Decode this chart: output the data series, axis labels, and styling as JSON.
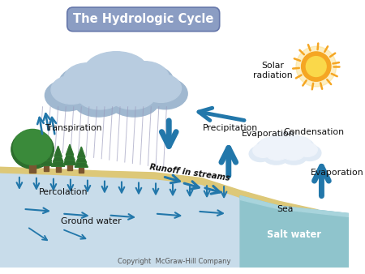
{
  "title": "The Hydrologic Cycle",
  "title_bg": "#8B9DC3",
  "title_color": "white",
  "copyright": "Copyright  McGraw-Hill Company",
  "background_color": "white",
  "labels": {
    "solar_radiation": "Solar\nradiation",
    "condensation": "Condensation",
    "precipitation": "Precipitation",
    "transpiration": "Transpiration",
    "evaporation_land": "Evaporation",
    "evaporation_sea": "Evaporation",
    "runoff": "Runoff in streams",
    "percolation": "Percolation",
    "ground_water": "Ground water",
    "sea": "Sea",
    "salt_water": "Salt water"
  },
  "colors": {
    "sky": "#f0f4f8",
    "ground_soil": "#c8dcea",
    "sea_water": "#8fc4cc",
    "arrow_blue": "#2277aa",
    "tree_dark": "#2d6e2d",
    "tree_mid": "#3a8a3a",
    "tree_trunk": "#7a5530",
    "sun_orange": "#f5a623",
    "sun_yellow": "#fad84a",
    "cloud_main": "#b8cce0",
    "cloud_shadow": "#a0b8d0",
    "cloud_small": "#dae4f0",
    "rain": "#9999bb",
    "sand_layer": "#ddc878",
    "sand_dark": "#c8b060"
  }
}
